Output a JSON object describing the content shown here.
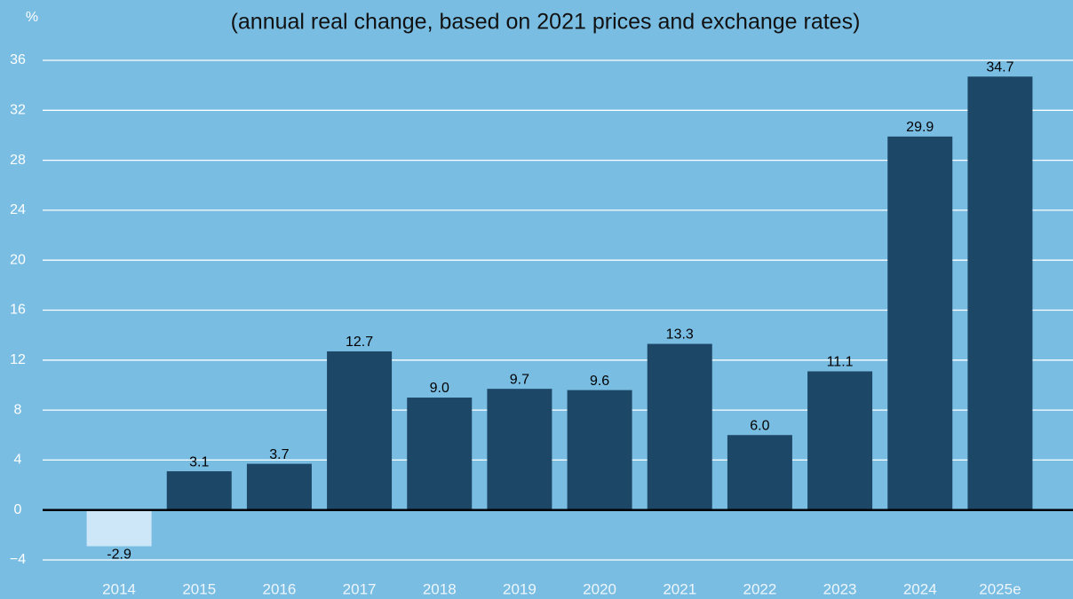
{
  "chart_data": {
    "type": "bar",
    "subtitle": "(annual real change, based on 2021 prices and exchange rates)",
    "y_axis_label": "%",
    "categories": [
      "2014",
      "2015",
      "2016",
      "2017",
      "2018",
      "2019",
      "2020",
      "2021",
      "2022",
      "2023",
      "2024",
      "2025e"
    ],
    "values": [
      -2.9,
      3.1,
      3.7,
      12.7,
      9.0,
      9.7,
      9.6,
      13.3,
      6.0,
      11.1,
      29.9,
      34.7
    ],
    "value_labels": [
      "-2.9",
      "3.1",
      "3.7",
      "12.7",
      "9.0",
      "9.7",
      "9.6",
      "13.3",
      "6.0",
      "11.1",
      "29.9",
      "34.7"
    ],
    "colors": [
      "#cde7f8",
      "#1d4767",
      "#1d4767",
      "#1d4767",
      "#1d4767",
      "#1d4767",
      "#1d4767",
      "#1d4767",
      "#1d4767",
      "#1d4767",
      "#1d4767",
      "#1d4767"
    ],
    "ylim": [
      -4,
      36
    ],
    "yticks": [
      {
        "value": -4,
        "label": "−4"
      },
      0,
      4,
      8,
      12,
      16,
      20,
      24,
      28,
      32,
      36
    ],
    "grid": true
  }
}
